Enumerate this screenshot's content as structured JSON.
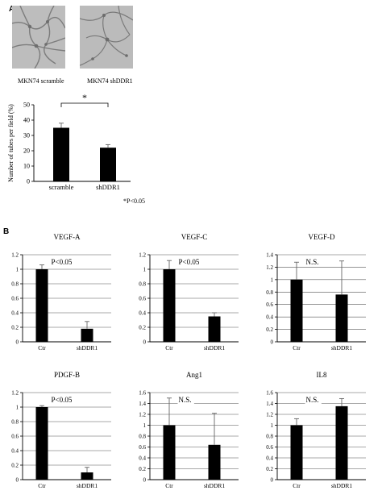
{
  "panel_a": {
    "letter": "A",
    "images": [
      {
        "caption": "MKN74 scramble"
      },
      {
        "caption": "MKN74 shDDR1"
      }
    ],
    "footnote": "*P<0.05"
  },
  "panel_b": {
    "letter": "B"
  },
  "chart_data": [
    {
      "id": "tubes",
      "type": "bar",
      "title": "",
      "xlabel": "",
      "ylabel": "Number of tubes per field (%)",
      "categories": [
        "scramble",
        "shDDR1"
      ],
      "values": [
        35,
        22
      ],
      "errors": [
        3,
        2
      ],
      "ylim": [
        0,
        50
      ],
      "yticks": [
        "0",
        "10",
        "20",
        "30",
        "40",
        "50"
      ],
      "grid": false,
      "annotation": "*"
    },
    {
      "id": "vegfa",
      "type": "bar",
      "title": "VEGF-A",
      "categories": [
        "Ctr",
        "shDDR1"
      ],
      "values": [
        1.0,
        0.18
      ],
      "errors": [
        0.06,
        0.1
      ],
      "ylim": [
        0,
        1.2
      ],
      "yticks": [
        "0",
        "0.2",
        "0.4",
        "0.6",
        "0.8",
        "1",
        "1.2"
      ],
      "grid": true,
      "annotation": "P<0.05"
    },
    {
      "id": "vegfc",
      "type": "bar",
      "title": "VEGF-C",
      "categories": [
        "Ctr",
        "shDDR1"
      ],
      "values": [
        1.0,
        0.35
      ],
      "errors": [
        0.12,
        0.05
      ],
      "ylim": [
        0,
        1.2
      ],
      "yticks": [
        "0",
        "0.2",
        "0.4",
        "0.6",
        "0.8",
        "1",
        "1.2"
      ],
      "grid": true,
      "annotation": "P<0.05"
    },
    {
      "id": "vegfd",
      "type": "bar",
      "title": "VEGF-D",
      "categories": [
        "Ctr",
        "shDDR1"
      ],
      "values": [
        1.0,
        0.76
      ],
      "errors": [
        0.28,
        0.54
      ],
      "ylim": [
        0,
        1.4
      ],
      "yticks": [
        "0",
        "0.2",
        "0.4",
        "0.6",
        "0.8",
        "1",
        "1.2",
        "1.4"
      ],
      "grid": true,
      "annotation": "N.S."
    },
    {
      "id": "pdgfb",
      "type": "bar",
      "title": "PDGF-B",
      "categories": [
        "Ctr",
        "shDDR1"
      ],
      "values": [
        1.0,
        0.1
      ],
      "errors": [
        0.02,
        0.07
      ],
      "ylim": [
        0,
        1.2
      ],
      "yticks": [
        "0",
        "0.2",
        "0.4",
        "0.6",
        "0.8",
        "1",
        "1.2"
      ],
      "grid": true,
      "annotation": "P<0.05"
    },
    {
      "id": "ang1",
      "type": "bar",
      "title": "Ang1",
      "categories": [
        "Ctr",
        "shDDR1"
      ],
      "values": [
        1.0,
        0.64
      ],
      "errors": [
        0.5,
        0.58
      ],
      "ylim": [
        0,
        1.6
      ],
      "yticks": [
        "0",
        "0.2",
        "0.4",
        "0.6",
        "0.8",
        "1",
        "1.2",
        "1.4",
        "1.6"
      ],
      "grid": true,
      "annotation": "N.S."
    },
    {
      "id": "il8",
      "type": "bar",
      "title": "IL8",
      "categories": [
        "Ctr",
        "shDDR1"
      ],
      "values": [
        1.0,
        1.35
      ],
      "errors": [
        0.12,
        0.14
      ],
      "ylim": [
        0,
        1.6
      ],
      "yticks": [
        "0",
        "0.2",
        "0.4",
        "0.6",
        "0.8",
        "1",
        "1.2",
        "1.4",
        "1.6"
      ],
      "grid": true,
      "annotation": "N.S."
    }
  ]
}
